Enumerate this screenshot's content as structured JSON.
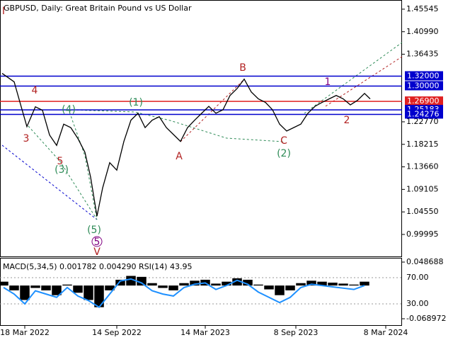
{
  "chart_data": [
    {
      "type": "line",
      "title": "GBPUSD, Daily:  Great Britain Pound vs US Dollar",
      "color": "#000000",
      "x": [
        3,
        20,
        30,
        38,
        50,
        60,
        70,
        80,
        90,
        100,
        110,
        120,
        128,
        137,
        145,
        155,
        165,
        175,
        185,
        195,
        205,
        215,
        225,
        235,
        245,
        255,
        265,
        275,
        285,
        295,
        305,
        315,
        325,
        335,
        345,
        355,
        365,
        375,
        385,
        395,
        405,
        415,
        425,
        435,
        445,
        455,
        465,
        475,
        485,
        495,
        505,
        515,
        523
      ],
      "values": [
        1.3257,
        1.3085,
        1.258,
        1.218,
        1.258,
        1.251,
        1.201,
        1.18,
        1.223,
        1.216,
        1.194,
        1.166,
        1.116,
        1.037,
        1.094,
        1.145,
        1.13,
        1.188,
        1.231,
        1.245,
        1.216,
        1.231,
        1.238,
        1.216,
        1.202,
        1.188,
        1.216,
        1.231,
        1.245,
        1.259,
        1.245,
        1.252,
        1.281,
        1.295,
        1.314,
        1.288,
        1.274,
        1.267,
        1.252,
        1.223,
        1.209,
        1.216,
        1.223,
        1.245,
        1.259,
        1.267,
        1.274,
        1.281,
        1.274,
        1.262,
        1.271,
        1.285,
        1.274
      ],
      "xlim": [
        0,
        568
      ],
      "xticks": [
        {
          "value": 35,
          "label": "18 Mar 2022"
        },
        {
          "value": 165,
          "label": "14 Sep 2022"
        },
        {
          "value": 290,
          "label": "14 Mar 2023"
        },
        {
          "value": 418,
          "label": "8 Sep 2023"
        },
        {
          "value": 545,
          "label": "8 Mar 2024"
        }
      ],
      "ylim": [
        0.9555,
        1.474
      ],
      "yticks": [
        1.45545,
        {
          "value": 1.4099,
          "label": "1.40990"
        },
        1.36435,
        {
          "value": 1.2277,
          "label": "1.22770"
        },
        1.18215,
        {
          "value": 1.1366,
          "label": "1.13660"
        },
        1.09105,
        {
          "value": 1.0455,
          "label": "1.04550"
        },
        0.99995
      ],
      "levels": [
        {
          "value": 1.32,
          "label": "1.32000",
          "color": "#0000cd"
        },
        {
          "value": 1.3,
          "label": "1.30000",
          "color": "#0000cd"
        },
        {
          "value": 1.269,
          "label": "1.26900",
          "color": "#e02020"
        },
        {
          "value": 1.25183,
          "label": "1.25183",
          "color": "#0000cd"
        },
        {
          "value": 1.24276,
          "label": "1.24276",
          "color": "#0000cd"
        }
      ],
      "annotations": [
        {
          "text": "I",
          "color": "#b22222"
        },
        {
          "text": "4",
          "color": "#b22222"
        },
        {
          "text": "3",
          "color": "#b22222"
        },
        {
          "text": "5",
          "color": "#b22222"
        },
        {
          "text": "(4)",
          "color": "#2e8b57"
        },
        {
          "text": "(3)",
          "color": "#2e8b57"
        },
        {
          "text": "(1)",
          "color": "#2e8b57"
        },
        {
          "text": "(5)",
          "color": "#2e8b57"
        },
        {
          "text": "5",
          "color": "#800080"
        },
        {
          "text": "V",
          "color": "#b22222"
        },
        {
          "text": "A",
          "color": "#b22222"
        },
        {
          "text": "B",
          "color": "#b22222"
        },
        {
          "text": "C",
          "color": "#b22222"
        },
        {
          "text": "(2)",
          "color": "#2e8b57"
        },
        {
          "text": "1",
          "color": "#800080"
        },
        {
          "text": "2",
          "color": "#b22222"
        }
      ]
    },
    {
      "type": "bar",
      "title": "MACD(5,34,5) 0.001782 0.004290 RSI(14) 43.95",
      "x": [
        5,
        20,
        35,
        50,
        65,
        80,
        95,
        110,
        125,
        140,
        155,
        170,
        185,
        200,
        215,
        230,
        245,
        260,
        275,
        290,
        305,
        320,
        335,
        350,
        365,
        380,
        395,
        410,
        425,
        440,
        455,
        470,
        485,
        500,
        515
      ],
      "xlim": [
        0,
        568
      ],
      "series": [
        {
          "color": "#000000",
          "values": [
            0.008,
            -0.01,
            -0.03,
            -0.005,
            -0.01,
            -0.02,
            0.002,
            -0.015,
            -0.03,
            -0.045,
            -0.01,
            0.012,
            0.02,
            0.018,
            0.005,
            -0.005,
            -0.01,
            0.005,
            0.01,
            0.012,
            0.004,
            0.008,
            0.015,
            0.012,
            0.002,
            -0.008,
            -0.02,
            -0.01,
            0.005,
            0.01,
            0.008,
            0.006,
            0.004,
            0.002,
            0.008
          ]
        },
        {
          "color": "#1e90ff",
          "axis": "y2",
          "values": [
            55,
            45,
            30,
            50,
            45,
            40,
            55,
            42,
            35,
            25,
            45,
            65,
            68,
            62,
            50,
            45,
            42,
            55,
            60,
            62,
            52,
            58,
            66,
            60,
            48,
            40,
            32,
            40,
            55,
            60,
            58,
            56,
            54,
            52,
            58
          ]
        }
      ],
      "ylim": [
        -0.068972,
        0.048688
      ],
      "yticks": [
        0.048688,
        -0.068972
      ],
      "y2lim": [
        7.3,
        93.8
      ],
      "y2ticks": [
        {
          "value": 70,
          "label": "70.00"
        },
        {
          "value": 30,
          "label": "30.00"
        }
      ]
    }
  ]
}
